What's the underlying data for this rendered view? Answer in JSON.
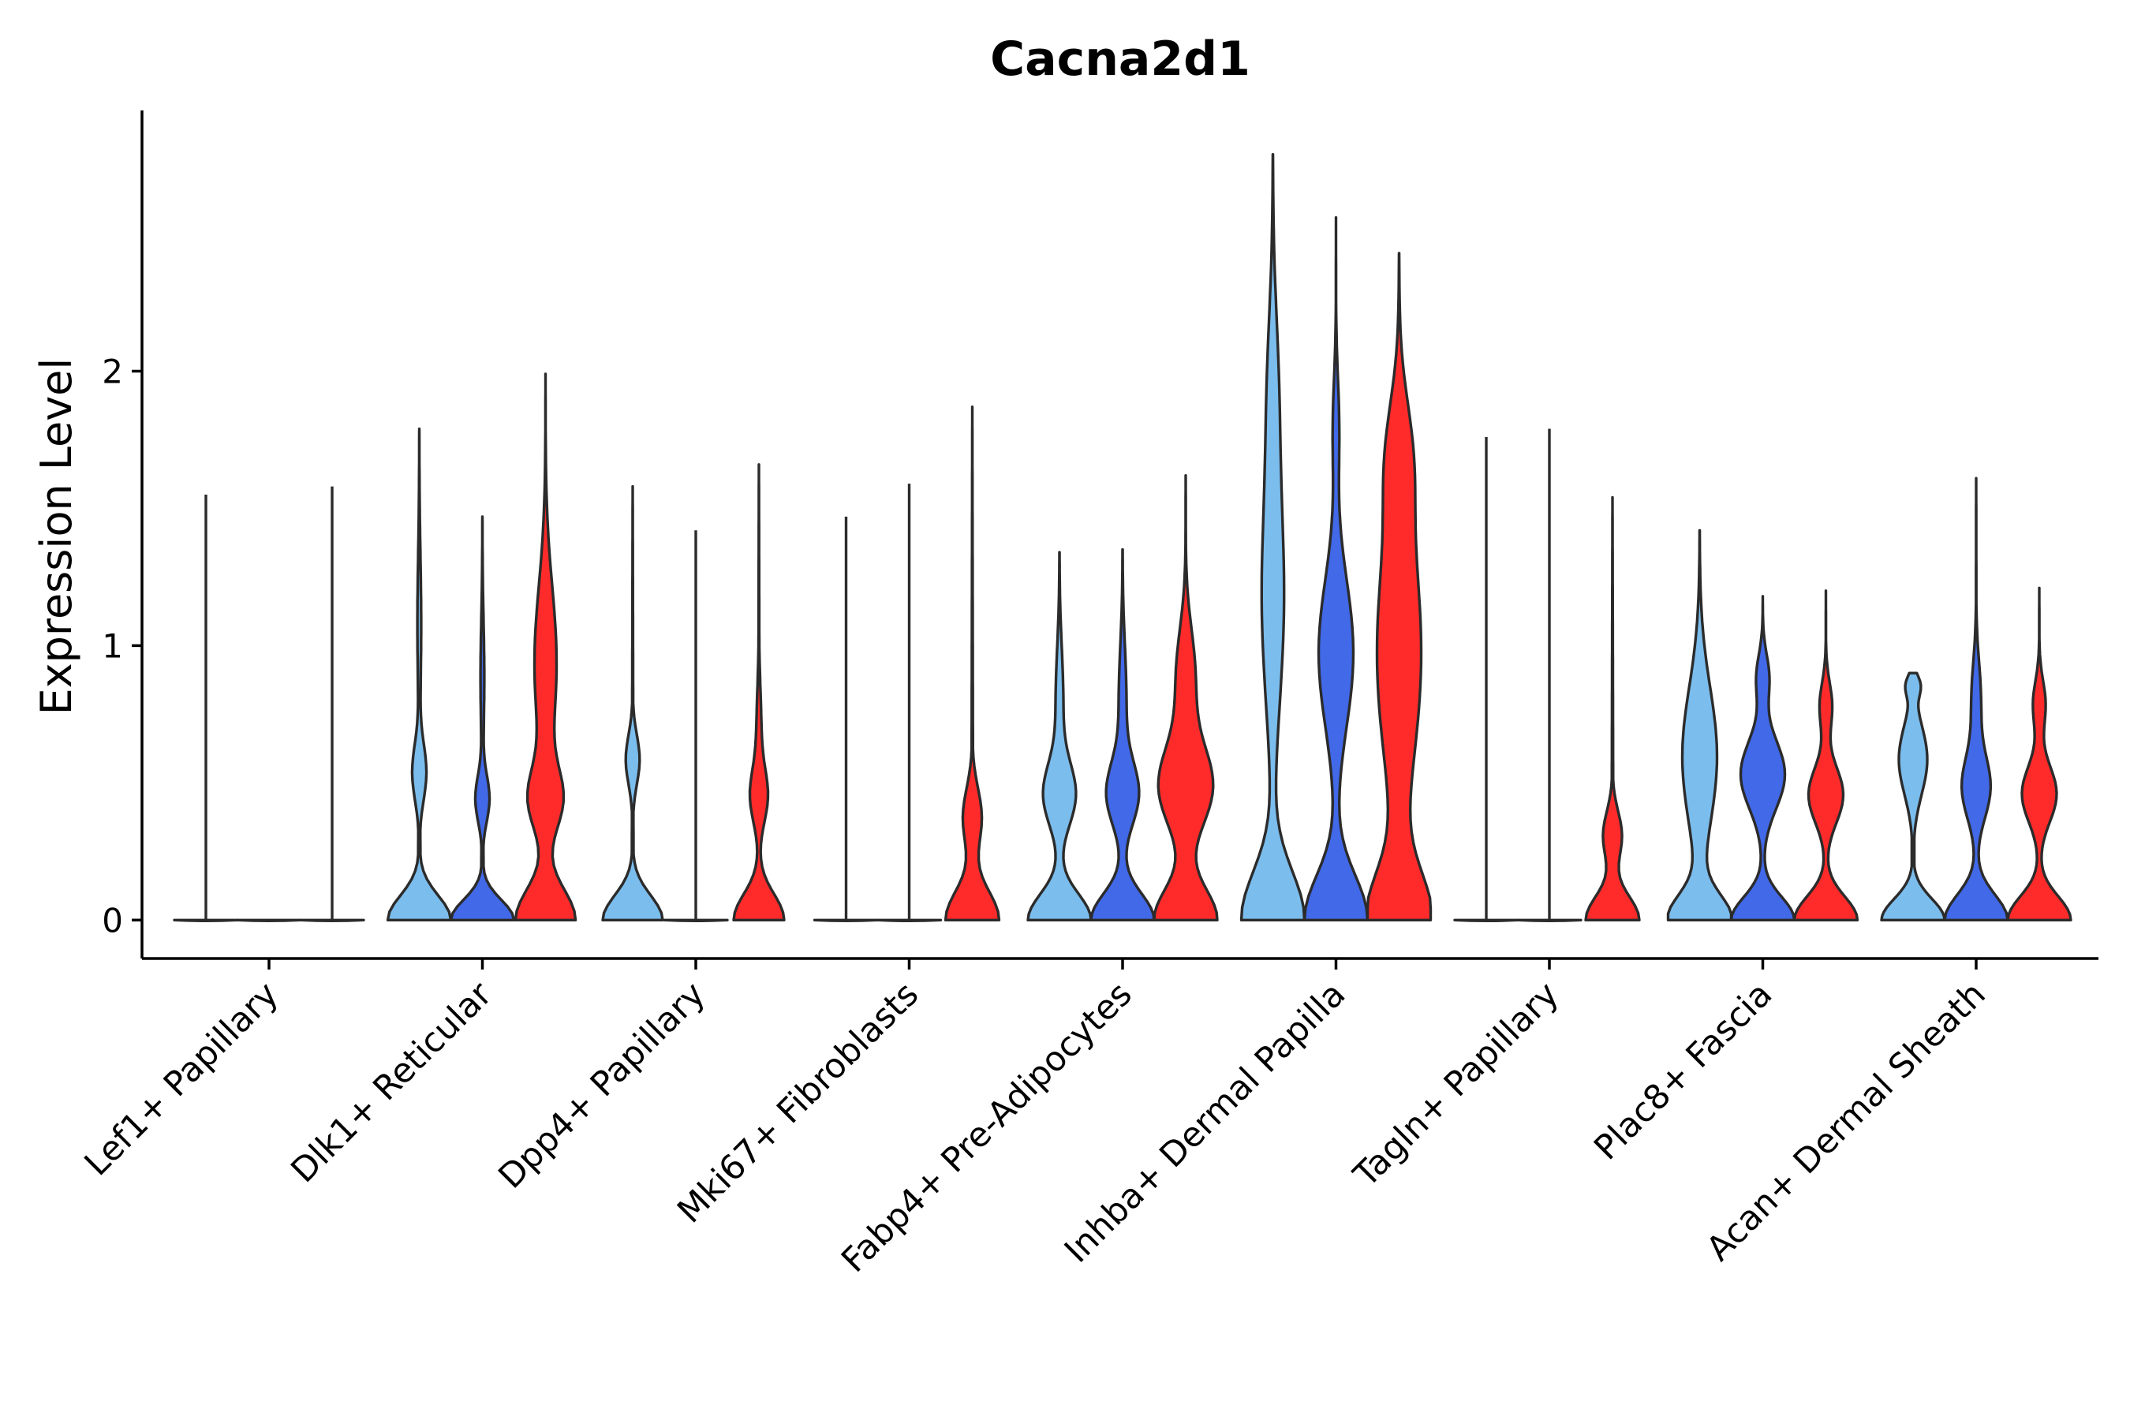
{
  "chart_data": {
    "type": "violin",
    "title": "Cacna2d1",
    "xlabel": "",
    "ylabel": "Expression Level",
    "ylim": [
      -0.14,
      2.95
    ],
    "yticks": [
      0,
      1,
      2
    ],
    "colors": {
      "light": "#7bbded",
      "medium": "#4169e8",
      "red": "#ff2a2a"
    },
    "categories": [
      "Lef1+ Papillary",
      "Dlk1+ Reticular",
      "Dpp4+ Papillary",
      "Mki67+ Fibroblasts",
      "Fabp4+ Pre-Adipocytes",
      "Inhba+ Dermal Papilla",
      "Tagln+ Papillary",
      "Plac8+ Fascia",
      "Acan+ Dermal Sheath"
    ],
    "violins": [
      [
        {
          "color": "light",
          "max": 1.55,
          "shape": "flat"
        },
        {
          "color": "medium",
          "max": 0.0,
          "shape": "flat"
        },
        {
          "color": "red",
          "max": 1.58,
          "shape": "flat"
        }
      ],
      [
        {
          "color": "light",
          "max": 1.79,
          "shape": "A"
        },
        {
          "color": "medium",
          "max": 1.47,
          "shape": "A"
        },
        {
          "color": "red",
          "max": 1.99,
          "shape": "B"
        }
      ],
      [
        {
          "color": "light",
          "max": 1.58,
          "shape": "C"
        },
        {
          "color": "medium",
          "max": 1.42,
          "shape": "flat"
        },
        {
          "color": "red",
          "max": 1.66,
          "shape": "D"
        }
      ],
      [
        {
          "color": "light",
          "max": 1.47,
          "shape": "flat"
        },
        {
          "color": "medium",
          "max": 1.59,
          "shape": "flat"
        },
        {
          "color": "red",
          "max": 1.87,
          "shape": "E"
        }
      ],
      [
        {
          "color": "light",
          "max": 1.34,
          "shape": "F"
        },
        {
          "color": "medium",
          "max": 1.35,
          "shape": "F"
        },
        {
          "color": "red",
          "max": 1.62,
          "shape": "G"
        }
      ],
      [
        {
          "color": "light",
          "max": 2.79,
          "shape": "H"
        },
        {
          "color": "medium",
          "max": 2.56,
          "shape": "I"
        },
        {
          "color": "red",
          "max": 2.43,
          "shape": "J"
        }
      ],
      [
        {
          "color": "light",
          "max": 1.76,
          "shape": "flat"
        },
        {
          "color": "medium",
          "max": 1.79,
          "shape": "flat"
        },
        {
          "color": "red",
          "max": 1.54,
          "shape": "E"
        }
      ],
      [
        {
          "color": "light",
          "max": 1.42,
          "shape": "K"
        },
        {
          "color": "medium",
          "max": 1.18,
          "shape": "L"
        },
        {
          "color": "red",
          "max": 1.2,
          "shape": "M"
        }
      ],
      [
        {
          "color": "light",
          "max": 0.9,
          "shape": "N"
        },
        {
          "color": "medium",
          "max": 1.61,
          "shape": "O"
        },
        {
          "color": "red",
          "max": 1.21,
          "shape": "M"
        }
      ]
    ]
  }
}
